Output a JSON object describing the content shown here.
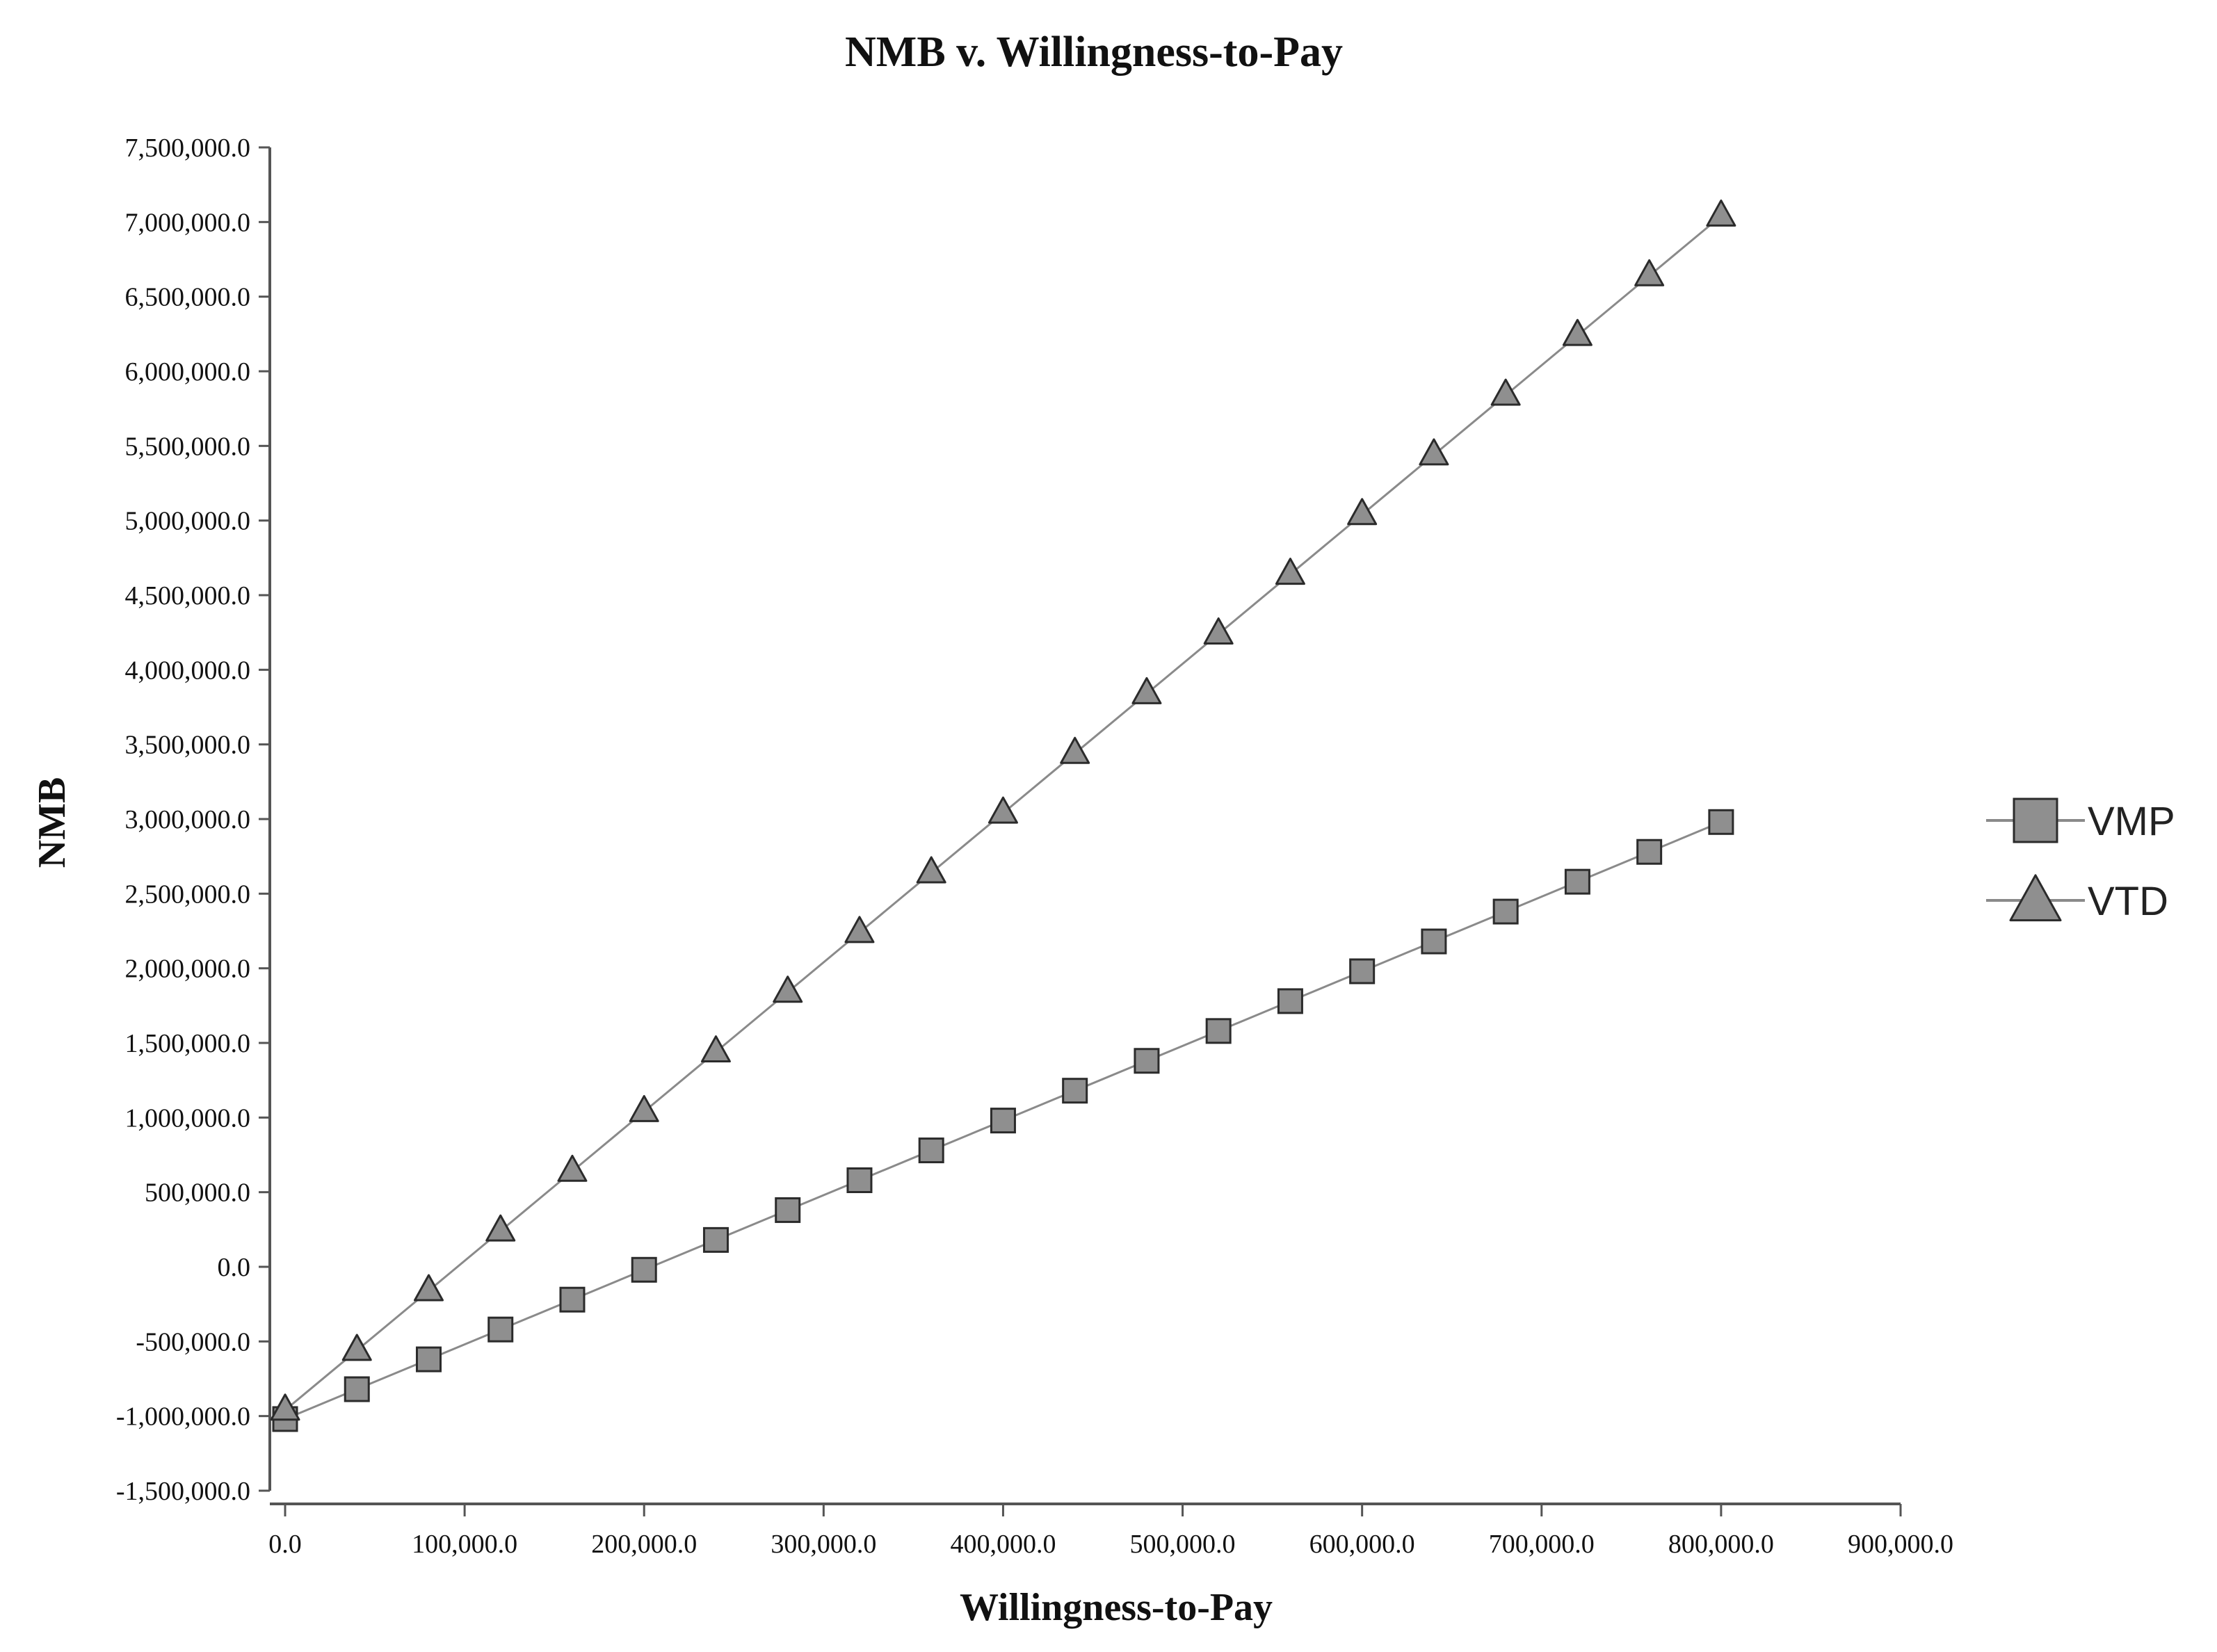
{
  "chart_data": {
    "type": "line",
    "title": "NMB v. Willingness-to-Pay",
    "xlabel": "Willingness-to-Pay",
    "ylabel": "NMB",
    "xlim": [
      0,
      900000
    ],
    "ylim": [
      -1500000,
      7500000
    ],
    "x_tick_values": [
      0,
      100000,
      200000,
      300000,
      400000,
      500000,
      600000,
      700000,
      800000,
      900000
    ],
    "x_tick_labels": [
      "0.0",
      "100,000.0",
      "200,000.0",
      "300,000.0",
      "400,000.0",
      "500,000.0",
      "600,000.0",
      "700,000.0",
      "800,000.0",
      "900,000.0"
    ],
    "y_tick_values": [
      -1500000,
      -1000000,
      -500000,
      0,
      500000,
      1000000,
      1500000,
      2000000,
      2500000,
      3000000,
      3500000,
      4000000,
      4500000,
      5000000,
      5500000,
      6000000,
      6500000,
      7000000,
      7500000
    ],
    "y_tick_labels": [
      "-1,500,000.0",
      "-1,000,000.0",
      "-500,000.0",
      "0.0",
      "500,000.0",
      "1,000,000.0",
      "1,500,000.0",
      "2,000,000.0",
      "2,500,000.0",
      "3,000,000.0",
      "3,500,000.0",
      "4,000,000.0",
      "4,500,000.0",
      "5,000,000.0",
      "5,500,000.0",
      "6,000,000.0",
      "6,500,000.0",
      "7,000,000.0",
      "7,500,000.0"
    ],
    "grid": false,
    "legend_position": "right",
    "x": [
      0,
      40000,
      80000,
      120000,
      160000,
      200000,
      240000,
      280000,
      320000,
      360000,
      400000,
      440000,
      480000,
      520000,
      560000,
      600000,
      640000,
      680000,
      720000,
      760000,
      800000
    ],
    "series": [
      {
        "name": "VMP",
        "marker": "square",
        "values": [
          -1020000,
          -820000,
          -620000,
          -420000,
          -220000,
          -20000,
          180000,
          380000,
          580000,
          780000,
          980000,
          1180000,
          1380000,
          1580000,
          1780000,
          1980000,
          2180000,
          2380000,
          2580000,
          2780000,
          2980000
        ]
      },
      {
        "name": "VTD",
        "marker": "triangle",
        "values": [
          -960000,
          -560000,
          -160000,
          240000,
          640000,
          1040000,
          1440000,
          1840000,
          2240000,
          2640000,
          3040000,
          3440000,
          3840000,
          4240000,
          4640000,
          5040000,
          5440000,
          5840000,
          6240000,
          6640000,
          7040000
        ]
      }
    ],
    "colors": {
      "line": "#8a8a8a",
      "marker_fill": "#8f8f8f",
      "marker_stroke": "#2b2b2b",
      "axis": "#555555"
    }
  }
}
